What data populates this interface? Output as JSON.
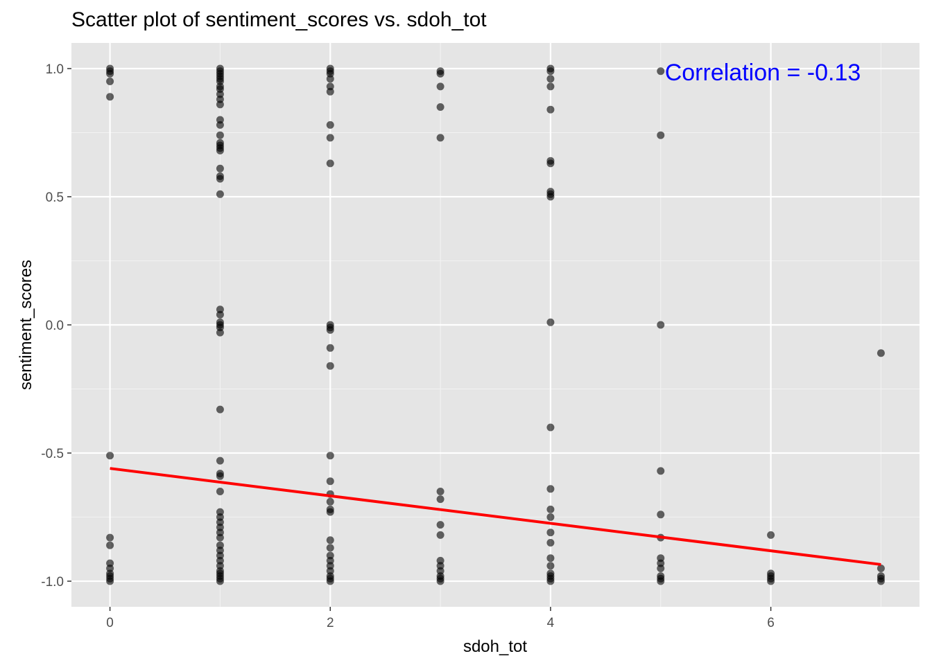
{
  "chart_data": {
    "type": "scatter",
    "title": "Scatter plot of sentiment_scores vs. sdoh_tot",
    "xlabel": "sdoh_tot",
    "ylabel": "sentiment_scores",
    "xlim": [
      -0.35,
      7.35
    ],
    "ylim": [
      -1.1,
      1.1
    ],
    "x_ticks": [
      0,
      2,
      4,
      6
    ],
    "x_tick_labels": [
      "0",
      "2",
      "4",
      "6"
    ],
    "y_ticks": [
      -1.0,
      -0.5,
      0.0,
      0.5,
      1.0
    ],
    "y_tick_labels": [
      "-1.0",
      "-0.5",
      "0.0",
      "0.5",
      "1.0"
    ],
    "grid": true,
    "background": "#e5e5e5",
    "point_color": "#000000",
    "trend_color": "#ff0000",
    "annotation_color": "#0000ff",
    "annotation": "Correlation =  -0.13",
    "trend_line": {
      "x": [
        0,
        7
      ],
      "y": [
        -0.56,
        -0.935
      ]
    },
    "points": [
      {
        "x": 0,
        "y": 1.0
      },
      {
        "x": 0,
        "y": 0.99
      },
      {
        "x": 0,
        "y": 0.98
      },
      {
        "x": 0,
        "y": 0.95
      },
      {
        "x": 0,
        "y": 0.89
      },
      {
        "x": 0,
        "y": -0.51
      },
      {
        "x": 0,
        "y": -0.83
      },
      {
        "x": 0,
        "y": -0.86
      },
      {
        "x": 0,
        "y": -0.93
      },
      {
        "x": 0,
        "y": -0.95
      },
      {
        "x": 0,
        "y": -0.97
      },
      {
        "x": 0,
        "y": -0.98
      },
      {
        "x": 0,
        "y": -0.99
      },
      {
        "x": 0,
        "y": -1.0
      },
      {
        "x": 1,
        "y": 1.0
      },
      {
        "x": 1,
        "y": 0.99
      },
      {
        "x": 1,
        "y": 0.98
      },
      {
        "x": 1,
        "y": 0.97
      },
      {
        "x": 1,
        "y": 0.96
      },
      {
        "x": 1,
        "y": 0.95
      },
      {
        "x": 1,
        "y": 0.93
      },
      {
        "x": 1,
        "y": 0.92
      },
      {
        "x": 1,
        "y": 0.9
      },
      {
        "x": 1,
        "y": 0.88
      },
      {
        "x": 1,
        "y": 0.86
      },
      {
        "x": 1,
        "y": 0.8
      },
      {
        "x": 1,
        "y": 0.78
      },
      {
        "x": 1,
        "y": 0.74
      },
      {
        "x": 1,
        "y": 0.71
      },
      {
        "x": 1,
        "y": 0.7
      },
      {
        "x": 1,
        "y": 0.69
      },
      {
        "x": 1,
        "y": 0.68
      },
      {
        "x": 1,
        "y": 0.61
      },
      {
        "x": 1,
        "y": 0.58
      },
      {
        "x": 1,
        "y": 0.57
      },
      {
        "x": 1,
        "y": 0.51
      },
      {
        "x": 1,
        "y": 0.06
      },
      {
        "x": 1,
        "y": 0.04
      },
      {
        "x": 1,
        "y": 0.01
      },
      {
        "x": 1,
        "y": 0.0
      },
      {
        "x": 1,
        "y": -0.01
      },
      {
        "x": 1,
        "y": -0.03
      },
      {
        "x": 1,
        "y": -0.33
      },
      {
        "x": 1,
        "y": -0.53
      },
      {
        "x": 1,
        "y": -0.58
      },
      {
        "x": 1,
        "y": -0.59
      },
      {
        "x": 1,
        "y": -0.65
      },
      {
        "x": 1,
        "y": -0.73
      },
      {
        "x": 1,
        "y": -0.75
      },
      {
        "x": 1,
        "y": -0.77
      },
      {
        "x": 1,
        "y": -0.79
      },
      {
        "x": 1,
        "y": -0.81
      },
      {
        "x": 1,
        "y": -0.83
      },
      {
        "x": 1,
        "y": -0.86
      },
      {
        "x": 1,
        "y": -0.88
      },
      {
        "x": 1,
        "y": -0.9
      },
      {
        "x": 1,
        "y": -0.92
      },
      {
        "x": 1,
        "y": -0.94
      },
      {
        "x": 1,
        "y": -0.96
      },
      {
        "x": 1,
        "y": -0.97
      },
      {
        "x": 1,
        "y": -0.98
      },
      {
        "x": 1,
        "y": -0.99
      },
      {
        "x": 1,
        "y": -1.0
      },
      {
        "x": 2,
        "y": 1.0
      },
      {
        "x": 2,
        "y": 0.99
      },
      {
        "x": 2,
        "y": 0.98
      },
      {
        "x": 2,
        "y": 0.96
      },
      {
        "x": 2,
        "y": 0.93
      },
      {
        "x": 2,
        "y": 0.91
      },
      {
        "x": 2,
        "y": 0.78
      },
      {
        "x": 2,
        "y": 0.73
      },
      {
        "x": 2,
        "y": 0.63
      },
      {
        "x": 2,
        "y": 0.0
      },
      {
        "x": 2,
        "y": -0.01
      },
      {
        "x": 2,
        "y": -0.02
      },
      {
        "x": 2,
        "y": -0.09
      },
      {
        "x": 2,
        "y": -0.16
      },
      {
        "x": 2,
        "y": -0.51
      },
      {
        "x": 2,
        "y": -0.61
      },
      {
        "x": 2,
        "y": -0.66
      },
      {
        "x": 2,
        "y": -0.69
      },
      {
        "x": 2,
        "y": -0.72
      },
      {
        "x": 2,
        "y": -0.73
      },
      {
        "x": 2,
        "y": -0.84
      },
      {
        "x": 2,
        "y": -0.87
      },
      {
        "x": 2,
        "y": -0.9
      },
      {
        "x": 2,
        "y": -0.92
      },
      {
        "x": 2,
        "y": -0.94
      },
      {
        "x": 2,
        "y": -0.96
      },
      {
        "x": 2,
        "y": -0.98
      },
      {
        "x": 2,
        "y": -0.99
      },
      {
        "x": 2,
        "y": -1.0
      },
      {
        "x": 3,
        "y": 0.99
      },
      {
        "x": 3,
        "y": 0.98
      },
      {
        "x": 3,
        "y": 0.93
      },
      {
        "x": 3,
        "y": 0.85
      },
      {
        "x": 3,
        "y": 0.73
      },
      {
        "x": 3,
        "y": -0.65
      },
      {
        "x": 3,
        "y": -0.68
      },
      {
        "x": 3,
        "y": -0.78
      },
      {
        "x": 3,
        "y": -0.82
      },
      {
        "x": 3,
        "y": -0.92
      },
      {
        "x": 3,
        "y": -0.94
      },
      {
        "x": 3,
        "y": -0.96
      },
      {
        "x": 3,
        "y": -0.98
      },
      {
        "x": 3,
        "y": -0.99
      },
      {
        "x": 3,
        "y": -1.0
      },
      {
        "x": 4,
        "y": 1.0
      },
      {
        "x": 4,
        "y": 0.99
      },
      {
        "x": 4,
        "y": 0.96
      },
      {
        "x": 4,
        "y": 0.93
      },
      {
        "x": 4,
        "y": 0.84
      },
      {
        "x": 4,
        "y": 0.64
      },
      {
        "x": 4,
        "y": 0.63
      },
      {
        "x": 4,
        "y": 0.52
      },
      {
        "x": 4,
        "y": 0.51
      },
      {
        "x": 4,
        "y": 0.5
      },
      {
        "x": 4,
        "y": 0.01
      },
      {
        "x": 4,
        "y": -0.4
      },
      {
        "x": 4,
        "y": -0.64
      },
      {
        "x": 4,
        "y": -0.72
      },
      {
        "x": 4,
        "y": -0.75
      },
      {
        "x": 4,
        "y": -0.81
      },
      {
        "x": 4,
        "y": -0.85
      },
      {
        "x": 4,
        "y": -0.91
      },
      {
        "x": 4,
        "y": -0.94
      },
      {
        "x": 4,
        "y": -0.97
      },
      {
        "x": 4,
        "y": -0.98
      },
      {
        "x": 4,
        "y": -0.99
      },
      {
        "x": 4,
        "y": -1.0
      },
      {
        "x": 5,
        "y": 0.99
      },
      {
        "x": 5,
        "y": 0.74
      },
      {
        "x": 5,
        "y": 0.0
      },
      {
        "x": 5,
        "y": -0.57
      },
      {
        "x": 5,
        "y": -0.74
      },
      {
        "x": 5,
        "y": -0.83
      },
      {
        "x": 5,
        "y": -0.91
      },
      {
        "x": 5,
        "y": -0.93
      },
      {
        "x": 5,
        "y": -0.95
      },
      {
        "x": 5,
        "y": -0.98
      },
      {
        "x": 5,
        "y": -0.99
      },
      {
        "x": 5,
        "y": -1.0
      },
      {
        "x": 6,
        "y": -0.82
      },
      {
        "x": 6,
        "y": -0.97
      },
      {
        "x": 6,
        "y": -0.98
      },
      {
        "x": 6,
        "y": -0.99
      },
      {
        "x": 6,
        "y": -1.0
      },
      {
        "x": 7,
        "y": -0.11
      },
      {
        "x": 7,
        "y": -0.95
      },
      {
        "x": 7,
        "y": -0.98
      },
      {
        "x": 7,
        "y": -0.99
      },
      {
        "x": 7,
        "y": -1.0
      }
    ]
  }
}
